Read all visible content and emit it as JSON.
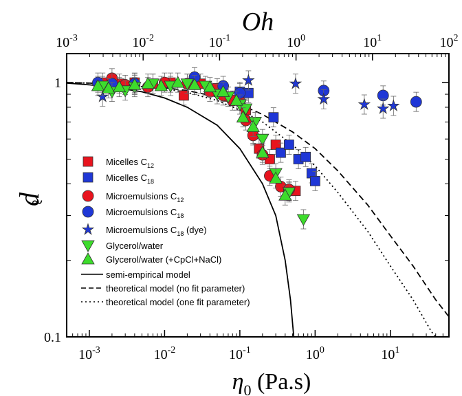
{
  "chart_data": {
    "type": "scatter",
    "title": "",
    "xlabel_bottom": "η0 (Pa.s)",
    "xlabel_top": "Oh",
    "ylabel": "d̃",
    "x_scale": "log",
    "y_scale": "log",
    "xlim_bottom": [
      0.0005,
      60
    ],
    "xlim_top": [
      0.001,
      100
    ],
    "ylim": [
      0.1,
      1.3
    ],
    "grid": false,
    "legend_placement": "center-left",
    "x_ticks_bottom": [
      "10-3",
      "10-2",
      "10-1",
      "100",
      "101"
    ],
    "x_ticks_top": [
      "10-3",
      "10-2",
      "10-1",
      "100",
      "101",
      "102"
    ],
    "y_ticks": [
      "0.1",
      "1"
    ],
    "series": [
      {
        "name": "Micelles C12",
        "marker": "square",
        "color": "#e8141e",
        "points": [
          [
            0.0015,
            1.0
          ],
          [
            0.0025,
            0.99
          ],
          [
            0.004,
            1.0
          ],
          [
            0.007,
            0.99
          ],
          [
            0.012,
            1.0
          ],
          [
            0.018,
            0.89
          ],
          [
            0.03,
            0.99
          ],
          [
            0.05,
            0.95
          ],
          [
            0.07,
            0.88
          ],
          [
            0.1,
            0.85
          ],
          [
            0.12,
            0.78
          ],
          [
            0.15,
            0.63
          ],
          [
            0.18,
            0.55
          ],
          [
            0.25,
            0.5
          ],
          [
            0.3,
            0.57
          ],
          [
            0.45,
            0.375
          ],
          [
            0.55,
            0.375
          ]
        ]
      },
      {
        "name": "Micelles C18",
        "marker": "square",
        "color": "#1f37d6",
        "points": [
          [
            0.1,
            0.92
          ],
          [
            0.13,
            0.91
          ],
          [
            0.28,
            0.73
          ],
          [
            0.35,
            0.53
          ],
          [
            0.45,
            0.57
          ],
          [
            0.6,
            0.5
          ],
          [
            0.75,
            0.51
          ],
          [
            0.9,
            0.44
          ],
          [
            1.0,
            0.41
          ]
        ]
      },
      {
        "name": "Microemulsions C12",
        "marker": "circle",
        "color": "#e8141e",
        "points": [
          [
            0.002,
            1.04
          ],
          [
            0.003,
            0.98
          ],
          [
            0.006,
            0.96
          ],
          [
            0.01,
            1.0
          ],
          [
            0.02,
            0.99
          ],
          [
            0.04,
            0.92
          ],
          [
            0.06,
            0.89
          ],
          [
            0.08,
            0.85
          ],
          [
            0.12,
            0.71
          ],
          [
            0.15,
            0.62
          ],
          [
            0.2,
            0.52
          ],
          [
            0.25,
            0.43
          ],
          [
            0.35,
            0.39
          ],
          [
            0.45,
            0.38
          ]
        ]
      },
      {
        "name": "Microemulsions C18",
        "marker": "circle",
        "color": "#1f37d6",
        "points": [
          [
            0.0013,
            1.0
          ],
          [
            0.002,
            0.99
          ],
          [
            0.004,
            0.99
          ],
          [
            0.025,
            1.05
          ],
          [
            0.06,
            0.97
          ],
          [
            0.1,
            0.91
          ],
          [
            1.3,
            0.93
          ],
          [
            8.0,
            0.89
          ],
          [
            22.0,
            0.84
          ]
        ]
      },
      {
        "name": "Microemulsions C18 (dye)",
        "marker": "star",
        "color": "#1f37d6",
        "points": [
          [
            0.0015,
            0.88
          ],
          [
            0.13,
            1.02
          ],
          [
            0.55,
            0.99
          ],
          [
            1.3,
            0.86
          ],
          [
            4.5,
            0.82
          ],
          [
            8.0,
            0.79
          ],
          [
            11.0,
            0.81
          ]
        ]
      },
      {
        "name": "Glycerol/water",
        "marker": "triangle-down",
        "color": "#3ddc2c",
        "points": [
          [
            0.0015,
            0.97
          ],
          [
            0.002,
            0.92
          ],
          [
            0.003,
            0.93
          ],
          [
            0.004,
            0.96
          ],
          [
            0.007,
            0.99
          ],
          [
            0.012,
            0.97
          ],
          [
            0.02,
            0.99
          ],
          [
            0.035,
            0.97
          ],
          [
            0.05,
            0.9
          ],
          [
            0.07,
            0.88
          ],
          [
            0.1,
            0.82
          ],
          [
            0.12,
            0.79
          ],
          [
            0.16,
            0.7
          ],
          [
            0.2,
            0.6
          ],
          [
            0.3,
            0.44
          ],
          [
            0.45,
            0.37
          ],
          [
            0.7,
            0.29
          ]
        ]
      },
      {
        "name": "Glycerol/water (+CpCl+NaCl)",
        "marker": "triangle-up",
        "color": "#3ddc2c",
        "points": [
          [
            0.0013,
            0.97
          ],
          [
            0.0018,
            0.95
          ],
          [
            0.0025,
            0.96
          ],
          [
            0.004,
            0.98
          ],
          [
            0.006,
            0.99
          ],
          [
            0.009,
            0.97
          ],
          [
            0.015,
            1.0
          ],
          [
            0.025,
            0.98
          ],
          [
            0.04,
            0.96
          ],
          [
            0.06,
            0.92
          ],
          [
            0.09,
            0.85
          ],
          [
            0.11,
            0.73
          ],
          [
            0.15,
            0.67
          ],
          [
            0.2,
            0.53
          ],
          [
            0.3,
            0.42
          ],
          [
            0.4,
            0.36
          ]
        ]
      }
    ],
    "lines": [
      {
        "name": "semi-empirical model",
        "style": "solid",
        "points": [
          [
            0.0005,
            0.995
          ],
          [
            0.001,
            0.98
          ],
          [
            0.002,
            0.96
          ],
          [
            0.005,
            0.92
          ],
          [
            0.01,
            0.87
          ],
          [
            0.02,
            0.8
          ],
          [
            0.05,
            0.68
          ],
          [
            0.1,
            0.55
          ],
          [
            0.2,
            0.4
          ],
          [
            0.3,
            0.3
          ],
          [
            0.4,
            0.2
          ],
          [
            0.47,
            0.14
          ],
          [
            0.52,
            0.1
          ]
        ]
      },
      {
        "name": "theoretical model (no fit parameter)",
        "style": "dashed",
        "points": [
          [
            0.0005,
            1.0
          ],
          [
            0.001,
            0.995
          ],
          [
            0.002,
            0.99
          ],
          [
            0.005,
            0.97
          ],
          [
            0.01,
            0.955
          ],
          [
            0.02,
            0.93
          ],
          [
            0.05,
            0.88
          ],
          [
            0.1,
            0.82
          ],
          [
            0.2,
            0.75
          ],
          [
            0.5,
            0.64
          ],
          [
            1,
            0.55
          ],
          [
            2,
            0.45
          ],
          [
            5,
            0.33
          ],
          [
            10,
            0.25
          ],
          [
            20,
            0.19
          ],
          [
            40,
            0.14
          ],
          [
            60,
            0.12
          ]
        ]
      },
      {
        "name": "theoretical model (one fit parameter)",
        "style": "dotted",
        "points": [
          [
            0.0005,
            1.0
          ],
          [
            0.001,
            0.995
          ],
          [
            0.002,
            0.99
          ],
          [
            0.005,
            0.965
          ],
          [
            0.01,
            0.945
          ],
          [
            0.02,
            0.915
          ],
          [
            0.05,
            0.85
          ],
          [
            0.1,
            0.78
          ],
          [
            0.2,
            0.7
          ],
          [
            0.5,
            0.57
          ],
          [
            1,
            0.47
          ],
          [
            2,
            0.37
          ],
          [
            5,
            0.26
          ],
          [
            10,
            0.19
          ],
          [
            20,
            0.14
          ],
          [
            35,
            0.105
          ],
          [
            40,
            0.1
          ]
        ]
      }
    ],
    "legend": [
      {
        "marker": "square",
        "color": "#e8141e",
        "label_main": "Micelles C",
        "label_sub": "12",
        "label_tail": ""
      },
      {
        "marker": "square",
        "color": "#1f37d6",
        "label_main": "Micelles C",
        "label_sub": "18",
        "label_tail": ""
      },
      {
        "marker": "circle",
        "color": "#e8141e",
        "label_main": "Microemulsions C",
        "label_sub": "12",
        "label_tail": ""
      },
      {
        "marker": "circle",
        "color": "#1f37d6",
        "label_main": "Microemulsions C",
        "label_sub": "18",
        "label_tail": ""
      },
      {
        "marker": "star",
        "color": "#1f37d6",
        "label_main": "Microemulsions C",
        "label_sub": "18",
        "label_tail": " (dye)"
      },
      {
        "marker": "triangle-down",
        "color": "#3ddc2c",
        "label_main": "Glycerol/water",
        "label_sub": "",
        "label_tail": ""
      },
      {
        "marker": "triangle-up",
        "color": "#3ddc2c",
        "label_main": "Glycerol/water (+CpCl+NaCl)",
        "label_sub": "",
        "label_tail": ""
      },
      {
        "marker": "line-solid",
        "color": "#000000",
        "label_main": "semi-empirical model",
        "label_sub": "",
        "label_tail": ""
      },
      {
        "marker": "line-dashed",
        "color": "#000000",
        "label_main": "theoretical model (no fit parameter)",
        "label_sub": "",
        "label_tail": ""
      },
      {
        "marker": "line-dotted",
        "color": "#000000",
        "label_main": "theoretical model (one fit parameter)",
        "label_sub": "",
        "label_tail": ""
      }
    ]
  }
}
